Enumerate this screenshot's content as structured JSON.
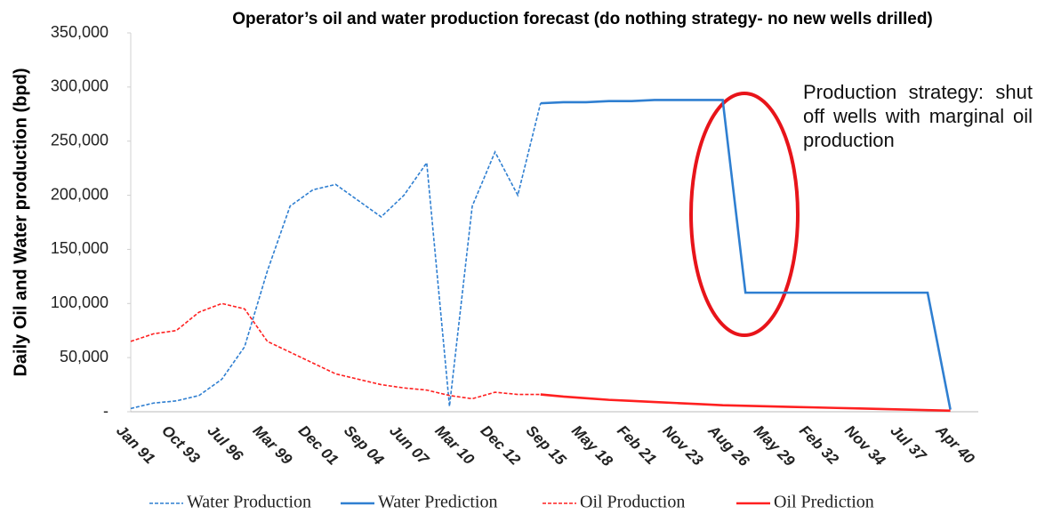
{
  "chart_data": {
    "type": "line",
    "title": "Operator’s oil and water production forecast (do nothing strategy- no new wells drilled)",
    "y_label": "Daily Oil and Water production (bpd)",
    "annotation": "Production strategy: shut off wells with marginal oil production",
    "categories": [
      "Jan 91",
      null,
      "Oct 93",
      null,
      "Jul 96",
      null,
      "Mar 99",
      null,
      "Dec 01",
      null,
      "Sep 04",
      null,
      "Jun 07",
      null,
      "Mar 10",
      null,
      "Dec 12",
      null,
      "Sep 15",
      null,
      "May 18",
      null,
      "Feb 21",
      null,
      "Nov 23",
      null,
      "Aug 26",
      null,
      "May 29",
      null,
      "Feb 32",
      null,
      "Nov 34",
      null,
      "Jul 37",
      null,
      "Apr 40"
    ],
    "series": [
      {
        "name": "Water Production",
        "color": "#2f7fd1",
        "style": "dashed",
        "values": [
          3000,
          8000,
          10000,
          15000,
          30000,
          60000,
          130000,
          190000,
          205000,
          210000,
          195000,
          180000,
          200000,
          230000,
          5000,
          190000,
          240000,
          200000,
          285000,
          null,
          null,
          null,
          null,
          null,
          null,
          null,
          null,
          null,
          null,
          null,
          null,
          null,
          null,
          null,
          null,
          null,
          null
        ]
      },
      {
        "name": "Water Prediction",
        "color": "#2f7fd1",
        "style": "solid",
        "values": [
          null,
          null,
          null,
          null,
          null,
          null,
          null,
          null,
          null,
          null,
          null,
          null,
          null,
          null,
          null,
          null,
          null,
          null,
          285000,
          286000,
          286000,
          287000,
          287000,
          288000,
          288000,
          288000,
          288000,
          110000,
          110000,
          110000,
          110000,
          110000,
          110000,
          110000,
          110000,
          110000,
          2000
        ]
      },
      {
        "name": "Oil Production",
        "color": "#ff2020",
        "style": "dashed",
        "values": [
          65000,
          72000,
          75000,
          92000,
          100000,
          95000,
          65000,
          55000,
          45000,
          35000,
          30000,
          25000,
          22000,
          20000,
          15000,
          12000,
          18000,
          16000,
          16000,
          null,
          null,
          null,
          null,
          null,
          null,
          null,
          null,
          null,
          null,
          null,
          null,
          null,
          null,
          null,
          null,
          null,
          null
        ]
      },
      {
        "name": "Oil Prediction",
        "color": "#ff2020",
        "style": "solid",
        "values": [
          null,
          null,
          null,
          null,
          null,
          null,
          null,
          null,
          null,
          null,
          null,
          null,
          null,
          null,
          null,
          null,
          null,
          null,
          16000,
          14000,
          12500,
          11000,
          10000,
          9000,
          8000,
          7000,
          6000,
          5500,
          5000,
          4500,
          4000,
          3500,
          3000,
          2500,
          2000,
          1500,
          1000
        ]
      }
    ],
    "ylim": [
      0,
      350000
    ],
    "yticks": [
      {
        "value": 0,
        "label": "-"
      },
      {
        "value": 50000,
        "label": "50,000"
      },
      {
        "value": 100000,
        "label": "100,000"
      },
      {
        "value": 150000,
        "label": "150,000"
      },
      {
        "value": 200000,
        "label": "200,000"
      },
      {
        "value": 250000,
        "label": "250,000"
      },
      {
        "value": 300000,
        "label": "300,000"
      },
      {
        "value": 350000,
        "label": "350,000"
      }
    ],
    "grid": false,
    "legend": "bottom"
  }
}
